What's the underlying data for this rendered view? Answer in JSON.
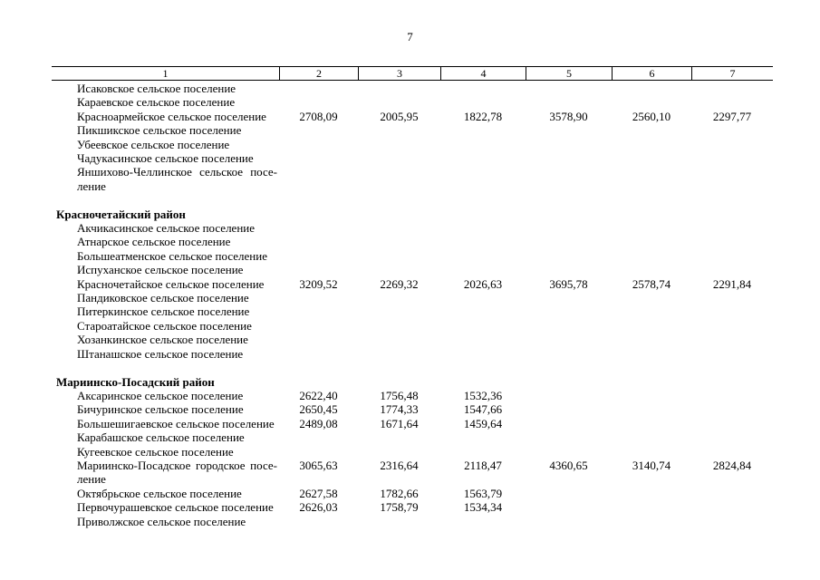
{
  "page": {
    "number": "7"
  },
  "table": {
    "header": [
      "1",
      "2",
      "3",
      "4",
      "5",
      "6",
      "7"
    ],
    "groups": [
      {
        "district": "",
        "rows": [
          {
            "name": "Исаковское сельское поселение",
            "values": [
              "",
              "",
              "",
              "",
              "",
              ""
            ]
          },
          {
            "name": "Караевское сельское поселение",
            "values": [
              "",
              "",
              "",
              "",
              "",
              ""
            ]
          },
          {
            "name": "Красноармейское сельское поселение",
            "values": [
              "2708,09",
              "2005,95",
              "1822,78",
              "3578,90",
              "2560,10",
              "2297,77"
            ]
          },
          {
            "name": "Пикшикское сельское поселение",
            "values": [
              "",
              "",
              "",
              "",
              "",
              ""
            ]
          },
          {
            "name": "Убеевское сельское поселение",
            "values": [
              "",
              "",
              "",
              "",
              "",
              ""
            ]
          },
          {
            "name": "Чадукасинское сельское поселение",
            "values": [
              "",
              "",
              "",
              "",
              "",
              ""
            ]
          },
          {
            "name_lines": [
              "Яншихово-Челлинское сельское посе-",
              "ление"
            ],
            "values": [
              "",
              "",
              "",
              "",
              "",
              ""
            ]
          }
        ]
      },
      {
        "district": "Красночетайский район",
        "rows": [
          {
            "name": "Акчикасинское сельское поселение",
            "values": [
              "",
              "",
              "",
              "",
              "",
              ""
            ]
          },
          {
            "name": "Атнарское сельское поселение",
            "values": [
              "",
              "",
              "",
              "",
              "",
              ""
            ]
          },
          {
            "name": "Большеатменское сельское поселение",
            "values": [
              "",
              "",
              "",
              "",
              "",
              ""
            ]
          },
          {
            "name": "Испуханское сельское поселение",
            "values": [
              "",
              "",
              "",
              "",
              "",
              ""
            ]
          },
          {
            "name": "Красночетайское сельское поселение",
            "values": [
              "3209,52",
              "2269,32",
              "2026,63",
              "3695,78",
              "2578,74",
              "2291,84"
            ]
          },
          {
            "name": "Пандиковское сельское поселение",
            "values": [
              "",
              "",
              "",
              "",
              "",
              ""
            ]
          },
          {
            "name": "Питеркинское сельское поселение",
            "values": [
              "",
              "",
              "",
              "",
              "",
              ""
            ]
          },
          {
            "name": "Староатайское сельское поселение",
            "values": [
              "",
              "",
              "",
              "",
              "",
              ""
            ]
          },
          {
            "name": "Хозанкинское сельское поселение",
            "values": [
              "",
              "",
              "",
              "",
              "",
              ""
            ]
          },
          {
            "name": "Штанашское сельское поселение",
            "values": [
              "",
              "",
              "",
              "",
              "",
              ""
            ]
          }
        ]
      },
      {
        "district": "Мариинско-Посадский район",
        "rows": [
          {
            "name": "Аксаринское сельское поселение",
            "values": [
              "2622,40",
              "1756,48",
              "1532,36",
              "",
              "",
              ""
            ]
          },
          {
            "name": "Бичуринское сельское поселение",
            "values": [
              "2650,45",
              "1774,33",
              "1547,66",
              "",
              "",
              ""
            ]
          },
          {
            "name": "Большешигаевское сельское поселение",
            "values": [
              "2489,08",
              "1671,64",
              "1459,64",
              "",
              "",
              ""
            ]
          },
          {
            "name": "Карабашское сельское поселение",
            "values": [
              "",
              "",
              "",
              "",
              "",
              ""
            ]
          },
          {
            "name": "Кугеевское сельское поселение",
            "values": [
              "",
              "",
              "",
              "",
              "",
              ""
            ]
          },
          {
            "name_lines": [
              "Мариинско-Посадское городское посе-",
              "ление"
            ],
            "values": [
              "3065,63",
              "2316,64",
              "2118,47",
              "4360,65",
              "3140,74",
              "2824,84"
            ]
          },
          {
            "name": "Октябрьское сельское поселение",
            "values": [
              "2627,58",
              "1782,66",
              "1563,79",
              "",
              "",
              ""
            ]
          },
          {
            "name": "Первочурашевское сельское поселение",
            "values": [
              "2626,03",
              "1758,79",
              "1534,34",
              "",
              "",
              ""
            ]
          },
          {
            "name": "Приволжское сельское поселение",
            "values": [
              "",
              "",
              "",
              "",
              "",
              ""
            ]
          }
        ]
      }
    ]
  }
}
